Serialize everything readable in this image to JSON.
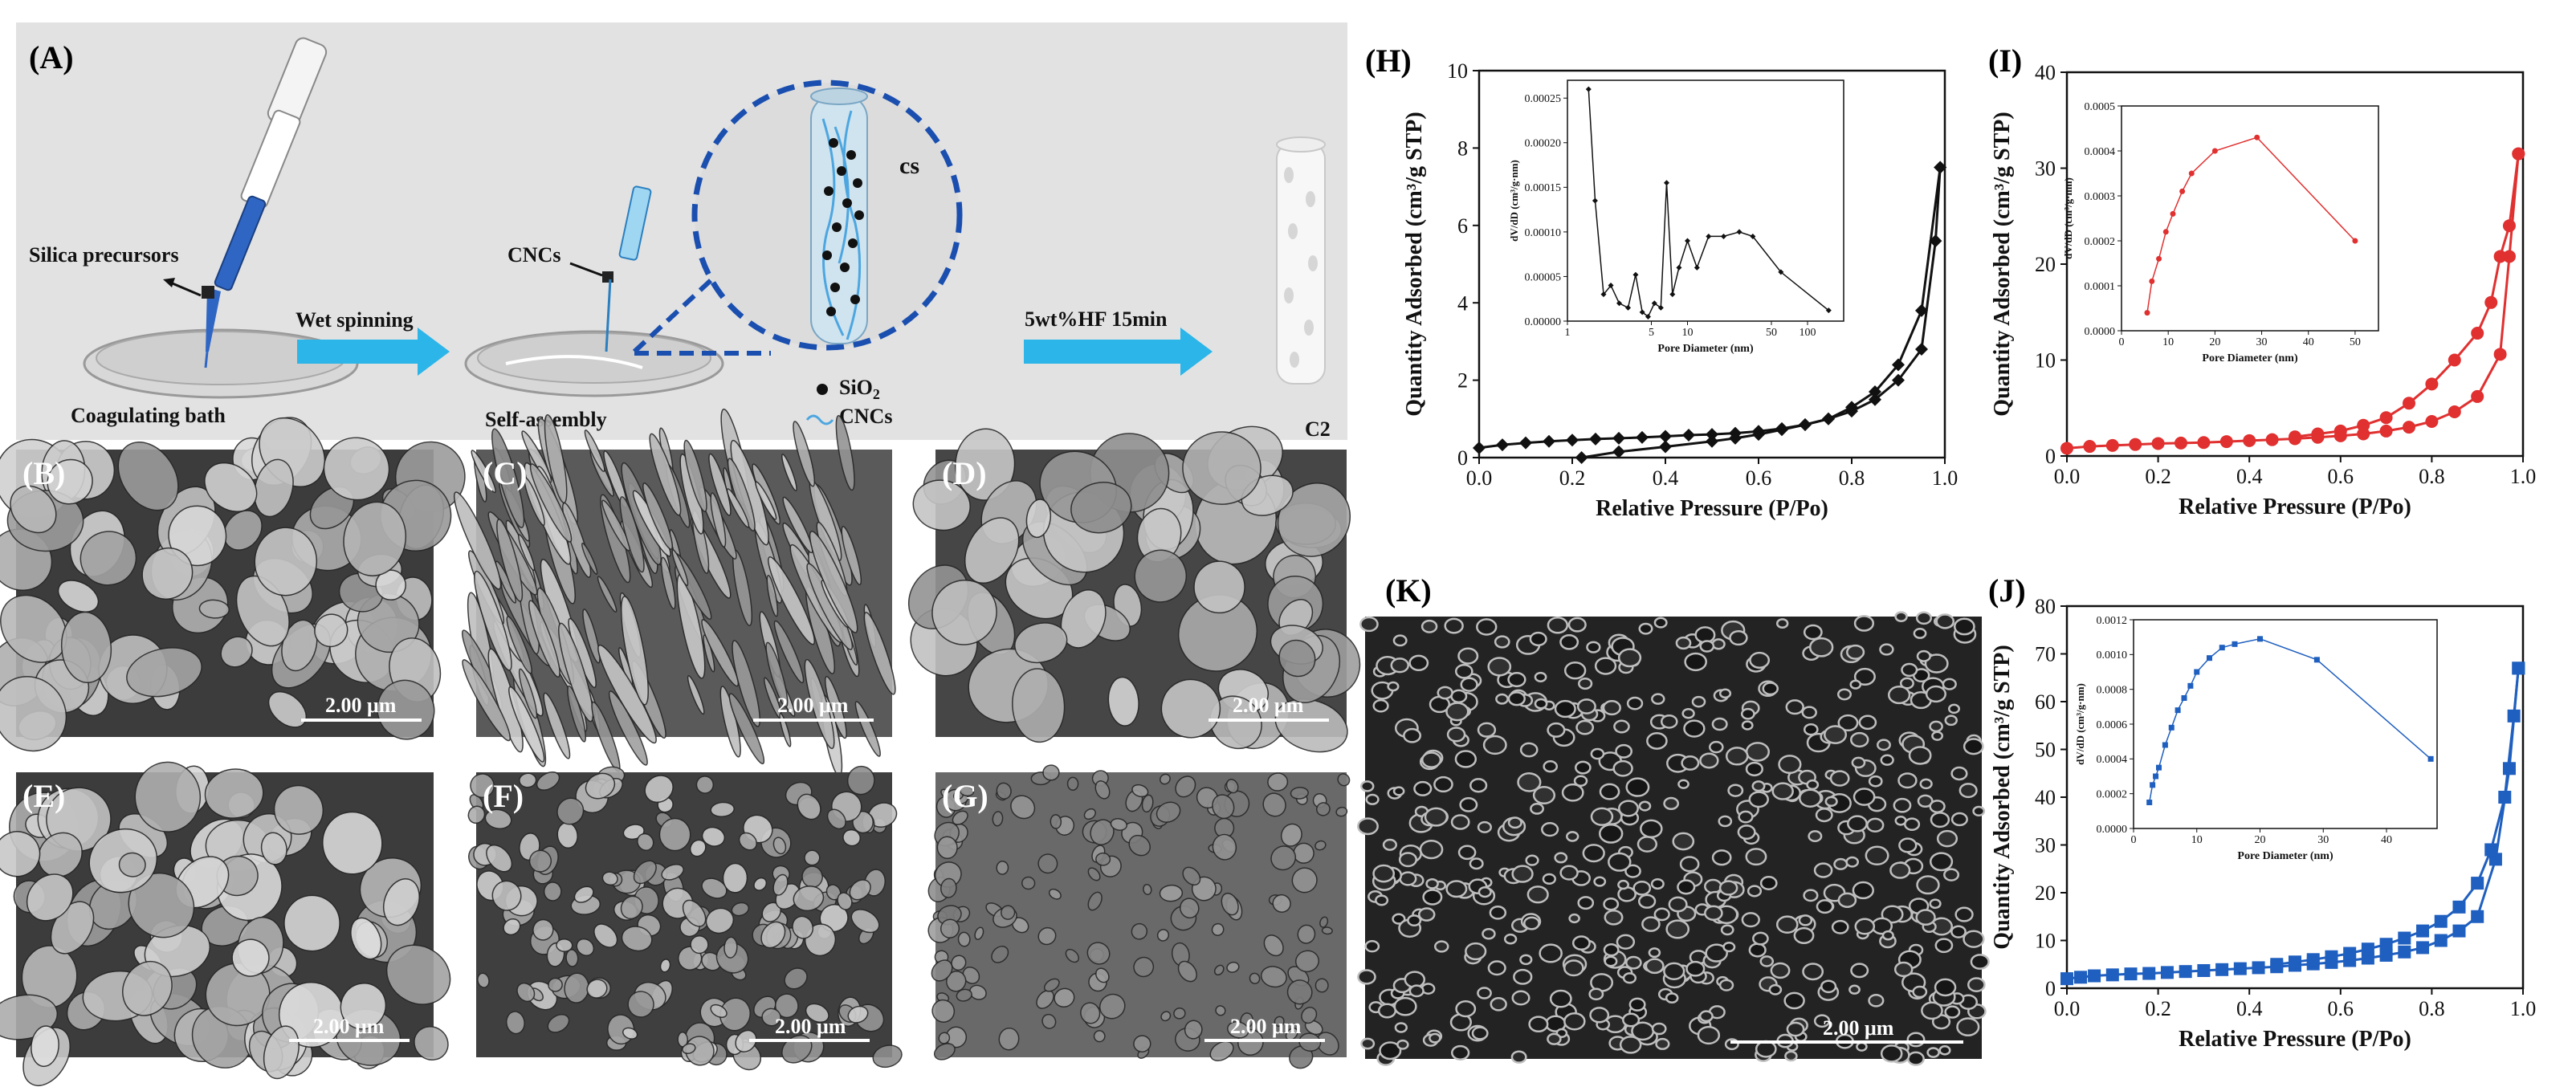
{
  "panel_labels": {
    "A": "(A)",
    "B": "(B)",
    "C": "(C)",
    "D": "(D)",
    "E": "(E)",
    "F": "(F)",
    "G": "(G)",
    "H": "(H)",
    "I": "(I)",
    "J": "(J)",
    "K": "(K)"
  },
  "schematic": {
    "silica_precursors": "Silica  precursors",
    "coagulating_bath": "Coagulating bath",
    "wet_spinning": "Wet spinning",
    "cncs": "CNCs",
    "self_assembly": "Self-assembly",
    "cs": "cs",
    "legend_sio2": "SiO",
    "legend_sio2_sub": "2",
    "legend_cncs": "CNCs",
    "hf": "5wt%HF  15min",
    "c2": "C2"
  },
  "scalebars": {
    "B": "2.00 μm",
    "C": "2.00 μm",
    "D": "2.00 μm",
    "E": "2.00 μm",
    "F": "2.00 μm",
    "G": "2.00 μm",
    "K": "2.00 μm"
  },
  "chart_data": [
    {
      "panel": "H",
      "type": "line",
      "xlabel": "Relative Pressure (P/Po)",
      "ylabel": "Quantity Adsorbed (cm³/g STP)",
      "xlim": [
        0,
        1.0
      ],
      "ylim": [
        0,
        10
      ],
      "xticks": [
        "0.0",
        "0.2",
        "0.4",
        "0.6",
        "0.8",
        "1.0"
      ],
      "yticks": [
        "0",
        "2",
        "4",
        "6",
        "8",
        "10"
      ],
      "color": "#111111",
      "series": [
        {
          "x": [
            0.0,
            0.05,
            0.1,
            0.15,
            0.2,
            0.25,
            0.3,
            0.35,
            0.4,
            0.45,
            0.5,
            0.55,
            0.6,
            0.65,
            0.7,
            0.75,
            0.8,
            0.85,
            0.9,
            0.95,
            0.99
          ],
          "values": [
            0.25,
            0.33,
            0.38,
            0.42,
            0.45,
            0.48,
            0.5,
            0.52,
            0.55,
            0.58,
            0.6,
            0.63,
            0.68,
            0.75,
            0.85,
            1.0,
            1.3,
            1.7,
            2.4,
            3.8,
            7.5
          ]
        },
        {
          "x": [
            0.22,
            0.3,
            0.4,
            0.5,
            0.55,
            0.6,
            0.65,
            0.7,
            0.75,
            0.8,
            0.85,
            0.9,
            0.95,
            0.98,
            0.99
          ],
          "values": [
            0.0,
            0.15,
            0.28,
            0.42,
            0.5,
            0.6,
            0.72,
            0.85,
            1.0,
            1.2,
            1.5,
            2.0,
            2.8,
            5.6,
            7.5
          ]
        }
      ],
      "inset": {
        "xlabel": "Pore Diameter (nm)",
        "ylabel": "dV/dD (cm³/g·nm)",
        "xscale": "log",
        "xlim": [
          1,
          200
        ],
        "ylim": [
          0,
          0.00027
        ],
        "xticks": [
          "1",
          "5",
          "10",
          "50",
          "100"
        ],
        "yticks": [
          "0.00000",
          "0.00005",
          "0.00010",
          "0.00015",
          "0.00020",
          "0.00025"
        ],
        "x": [
          1.5,
          1.7,
          2.0,
          2.3,
          2.7,
          3.2,
          3.7,
          4.2,
          4.7,
          5.3,
          6.0,
          6.7,
          7.5,
          8.5,
          10,
          12,
          15,
          20,
          27,
          35,
          60,
          150
        ],
        "values": [
          0.00026,
          0.000135,
          3e-05,
          4e-05,
          2e-05,
          1.5e-05,
          5.2e-05,
          1e-05,
          5e-06,
          2e-05,
          1.5e-05,
          0.000155,
          3e-05,
          6e-05,
          9e-05,
          6e-05,
          9.5e-05,
          9.5e-05,
          0.0001,
          9.5e-05,
          5.5e-05,
          1.2e-05
        ]
      }
    },
    {
      "panel": "I",
      "type": "line",
      "xlabel": "Relative Pressure (P/Po)",
      "ylabel": "Quantity Adsorbed (cm³/g STP)",
      "xlim": [
        0,
        1.0
      ],
      "ylim": [
        0,
        40
      ],
      "xticks": [
        "0.0",
        "0.2",
        "0.4",
        "0.6",
        "0.8",
        "1.0"
      ],
      "yticks": [
        "0",
        "10",
        "20",
        "30",
        "40"
      ],
      "color": "#e03030",
      "series": [
        {
          "x": [
            0.0,
            0.05,
            0.1,
            0.15,
            0.2,
            0.25,
            0.3,
            0.35,
            0.4,
            0.45,
            0.5,
            0.55,
            0.6,
            0.65,
            0.7,
            0.75,
            0.8,
            0.85,
            0.9,
            0.95,
            0.97,
            0.99
          ],
          "values": [
            0.8,
            1.0,
            1.1,
            1.2,
            1.3,
            1.35,
            1.4,
            1.5,
            1.6,
            1.7,
            1.8,
            1.95,
            2.1,
            2.3,
            2.6,
            3.0,
            3.6,
            4.6,
            6.2,
            10.6,
            20.8,
            31.5
          ]
        },
        {
          "x": [
            0.5,
            0.55,
            0.6,
            0.65,
            0.7,
            0.75,
            0.8,
            0.85,
            0.9,
            0.93,
            0.95,
            0.97,
            0.99
          ],
          "values": [
            2.0,
            2.3,
            2.6,
            3.2,
            4.0,
            5.5,
            7.5,
            10,
            12.8,
            16,
            20.8,
            24,
            31.5
          ]
        }
      ],
      "inset": {
        "xlabel": "Pore Diameter (nm)",
        "ylabel": "dV/dD (cm³/g·nm)",
        "xscale": "linear",
        "xlim": [
          0,
          55
        ],
        "ylim": [
          0,
          0.0005
        ],
        "xticks": [
          "0",
          "10",
          "20",
          "30",
          "40",
          "50"
        ],
        "yticks": [
          "0.0000",
          "0.0001",
          "0.0002",
          "0.0003",
          "0.0004",
          "0.0005"
        ],
        "x": [
          5.5,
          6.5,
          8,
          9.5,
          11,
          13,
          15,
          20,
          29,
          50
        ],
        "values": [
          4e-05,
          0.00011,
          0.00016,
          0.00022,
          0.00026,
          0.00031,
          0.00035,
          0.0004,
          0.00043,
          0.0002
        ]
      }
    },
    {
      "panel": "J",
      "type": "line",
      "xlabel": "Relative Pressure (P/Po)",
      "ylabel": "Quantity Adsorbed (cm³/g STP)",
      "xlim": [
        0,
        1.0
      ],
      "ylim": [
        0,
        80
      ],
      "xticks": [
        "0.0",
        "0.2",
        "0.4",
        "0.6",
        "0.8",
        "1.0"
      ],
      "yticks": [
        "0",
        "10",
        "20",
        "30",
        "40",
        "50",
        "60",
        "70",
        "80"
      ],
      "color": "#1f5fbf",
      "series": [
        {
          "x": [
            0.0,
            0.03,
            0.06,
            0.1,
            0.14,
            0.18,
            0.22,
            0.26,
            0.3,
            0.34,
            0.38,
            0.42,
            0.46,
            0.5,
            0.54,
            0.58,
            0.62,
            0.66,
            0.7,
            0.74,
            0.78,
            0.82,
            0.86,
            0.9,
            0.94,
            0.97,
            0.99
          ],
          "values": [
            2.0,
            2.3,
            2.6,
            2.8,
            3.0,
            3.1,
            3.3,
            3.5,
            3.7,
            3.9,
            4.1,
            4.3,
            4.5,
            4.8,
            5.1,
            5.4,
            5.8,
            6.3,
            6.9,
            7.6,
            8.5,
            10,
            12,
            15,
            27,
            46,
            67
          ]
        },
        {
          "x": [
            0.46,
            0.5,
            0.54,
            0.58,
            0.62,
            0.66,
            0.7,
            0.74,
            0.78,
            0.82,
            0.86,
            0.9,
            0.93,
            0.96,
            0.98,
            0.99
          ],
          "values": [
            5.0,
            5.5,
            6.0,
            6.6,
            7.3,
            8.2,
            9.2,
            10.5,
            12,
            14,
            17,
            22,
            29,
            40,
            57,
            67
          ]
        }
      ],
      "inset": {
        "xlabel": "Pore Diameter (nm)",
        "ylabel": "dV/dD (cm³/g·nm)",
        "xscale": "linear",
        "xlim": [
          0,
          48
        ],
        "ylim": [
          0,
          0.0012
        ],
        "xticks": [
          "0",
          "10",
          "20",
          "30",
          "40"
        ],
        "yticks": [
          "0.0000",
          "0.0002",
          "0.0004",
          "0.0006",
          "0.0008",
          "0.0010",
          "0.0012"
        ],
        "x": [
          2.5,
          3,
          3.5,
          4,
          5,
          6,
          7,
          8,
          9,
          10,
          12,
          14,
          16,
          20,
          29,
          47
        ],
        "values": [
          0.00015,
          0.00025,
          0.0003,
          0.00035,
          0.00048,
          0.00058,
          0.00068,
          0.00075,
          0.00082,
          0.0009,
          0.00098,
          0.00104,
          0.00106,
          0.00109,
          0.00097,
          0.0004
        ]
      }
    }
  ]
}
